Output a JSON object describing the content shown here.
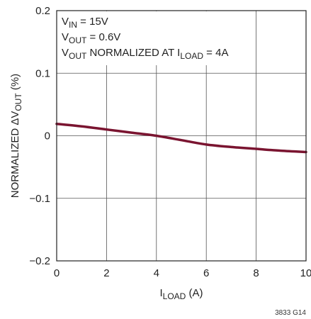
{
  "chart_data": {
    "type": "line",
    "ylabel": {
      "prefix": "NORMALIZED ΔV",
      "sub": "OUT",
      "suffix": " (%)"
    },
    "xlabel": {
      "prefix": "I",
      "sub": "LOAD",
      "suffix": " (A)"
    },
    "xlim": [
      0,
      10
    ],
    "ylim": [
      -0.2,
      0.2
    ],
    "x_ticks": [
      0,
      2,
      4,
      6,
      8,
      10
    ],
    "x_tick_labels": [
      "0",
      "2",
      "4",
      "6",
      "8",
      "10"
    ],
    "y_ticks": [
      -0.2,
      -0.1,
      0,
      0.1,
      0.2
    ],
    "y_tick_labels": [
      "−0.2",
      "−0.1",
      "0",
      "0.1",
      "0.2"
    ],
    "grid": true,
    "annotations": [
      [
        {
          "t": "V"
        },
        {
          "t": "IN",
          "sub": true
        },
        {
          "t": " = 15V"
        }
      ],
      [
        {
          "t": "V"
        },
        {
          "t": "OUT",
          "sub": true
        },
        {
          "t": " = 0.6V"
        }
      ],
      [
        {
          "t": "V"
        },
        {
          "t": "OUT",
          "sub": true
        },
        {
          "t": " NORMALIZED AT I"
        },
        {
          "t": "LOAD",
          "sub": true
        },
        {
          "t": " = 4A"
        }
      ]
    ],
    "figure_code": "3833 G14",
    "series": [
      {
        "color": "#7a1430",
        "x": [
          0,
          1,
          2,
          3,
          4,
          5,
          6,
          7,
          8,
          9,
          10
        ],
        "y": [
          0.019,
          0.015,
          0.01,
          0.005,
          0.0,
          -0.007,
          -0.014,
          -0.018,
          -0.021,
          -0.024,
          -0.026
        ]
      }
    ]
  }
}
